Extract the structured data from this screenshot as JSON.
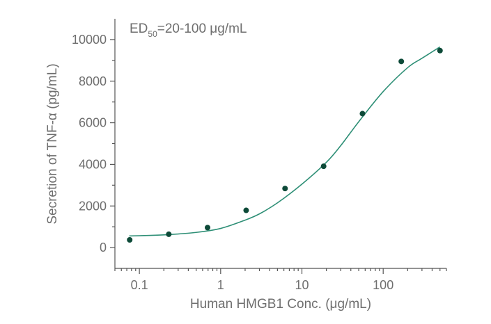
{
  "chart_data": {
    "type": "scatter",
    "annotation": {
      "prefix": "ED",
      "subscript": "50",
      "suffix": "=20-100 μg/mL"
    },
    "xlabel": "Human HMGB1 Conc. (μg/mL)",
    "ylabel": "Secretion of TNF-α (pg/mL)",
    "x_scale": "log",
    "xlim": [
      0.05,
      600
    ],
    "ylim": [
      -1000,
      11000
    ],
    "x_ticks": [
      {
        "value": 0.1,
        "label": "0.1"
      },
      {
        "value": 1,
        "label": "1"
      },
      {
        "value": 10,
        "label": "10"
      },
      {
        "value": 100,
        "label": "100"
      }
    ],
    "y_ticks": [
      {
        "value": 0,
        "label": "0"
      },
      {
        "value": 2000,
        "label": "2000"
      },
      {
        "value": 4000,
        "label": "4000"
      },
      {
        "value": 6000,
        "label": "6000"
      },
      {
        "value": 8000,
        "label": "8000"
      },
      {
        "value": 10000,
        "label": "10000"
      }
    ],
    "grid": false,
    "colors": {
      "points": "#0d4a38",
      "curve": "#2e8f76",
      "axis": "#555555",
      "text": "#6f6f6f"
    },
    "points": [
      {
        "x": 0.076,
        "y": 370
      },
      {
        "x": 0.23,
        "y": 640
      },
      {
        "x": 0.69,
        "y": 960
      },
      {
        "x": 2.06,
        "y": 1790
      },
      {
        "x": 6.2,
        "y": 2840
      },
      {
        "x": 18.5,
        "y": 3910
      },
      {
        "x": 55.6,
        "y": 6440
      },
      {
        "x": 167,
        "y": 8950
      },
      {
        "x": 500,
        "y": 9470
      }
    ],
    "fit_curve": [
      {
        "x": 0.075,
        "y": 560
      },
      {
        "x": 0.1,
        "y": 570
      },
      {
        "x": 0.2,
        "y": 610
      },
      {
        "x": 0.5,
        "y": 730
      },
      {
        "x": 1,
        "y": 920
      },
      {
        "x": 2,
        "y": 1320
      },
      {
        "x": 3,
        "y": 1620
      },
      {
        "x": 5,
        "y": 2150
      },
      {
        "x": 10,
        "y": 3050
      },
      {
        "x": 20,
        "y": 4100
      },
      {
        "x": 30,
        "y": 4900
      },
      {
        "x": 50,
        "y": 6050
      },
      {
        "x": 100,
        "y": 7500
      },
      {
        "x": 200,
        "y": 8650
      },
      {
        "x": 300,
        "y": 9100
      },
      {
        "x": 500,
        "y": 9650
      }
    ]
  }
}
